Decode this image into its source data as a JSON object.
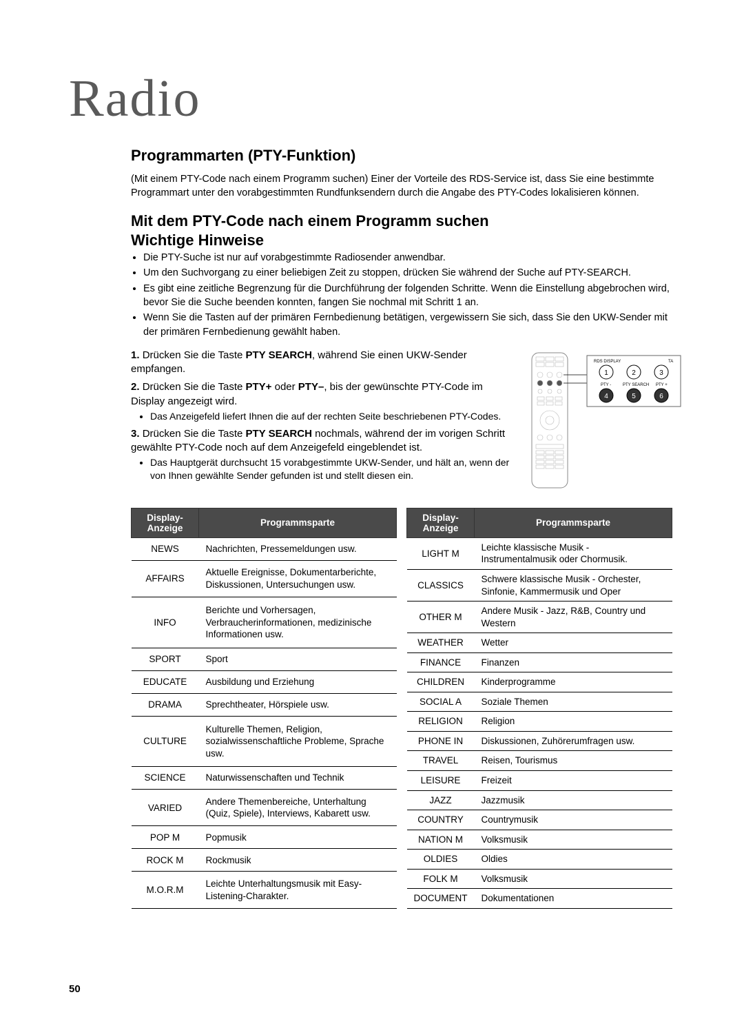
{
  "page": {
    "chapter": "Radio",
    "pageNumber": "50"
  },
  "section1": {
    "heading": "Programmarten (PTY-Funktion)",
    "intro": "(Mit einem PTY-Code nach einem Programm suchen) Einer der Vorteile des RDS-Service ist, dass Sie eine bestimmte Programmart unter den vorabgestimmten Rundfunksendern durch die Angabe des PTY-Codes lokalisieren können."
  },
  "section2": {
    "heading": "Mit dem PTY-Code nach einem Programm suchen",
    "subheading": "Wichtige Hinweise",
    "bullets": [
      "Die PTY-Suche ist nur auf vorabgestimmte Radiosender anwendbar.",
      "Um den Suchvorgang zu einer beliebigen Zeit zu stoppen, drücken Sie während der Suche auf PTY-SEARCH.",
      "Es gibt eine zeitliche Begrenzung für die Durchführung der folgenden Schritte. Wenn die Einstellung abgebrochen wird, bevor Sie die Suche beenden konnten, fangen Sie nochmal mit Schritt 1 an.",
      "Wenn Sie die Tasten auf der primären Fernbedienung betätigen, vergewissern Sie sich, dass Sie den UKW-Sender mit der primären Fernbedienung gewählt haben."
    ],
    "steps": [
      {
        "num": "1.",
        "pre": "Drücken Sie die Taste ",
        "bold": "PTY SEARCH",
        "post": ", während Sie einen UKW-Sender empfangen."
      },
      {
        "num": "2.",
        "pre": "Drücken Sie die Taste ",
        "bold": "PTY+",
        "mid": " oder ",
        "bold2": "PTY–",
        "post": ", bis der gewünschte PTY-Code im Display angezeigt wird.",
        "sub": "Das Anzeigefeld liefert Ihnen die auf der rechten Seite beschriebenen PTY-Codes."
      },
      {
        "num": "3.",
        "pre": "Drücken Sie die Taste ",
        "bold": "PTY SEARCH",
        "post": " nochmals, während der im vorigen Schritt gewählte PTY-Code noch auf dem Anzeigefeld eingeblendet ist.",
        "sub": "Das Hauptgerät durchsucht 15 vorabgestimmte UKW-Sender, und hält an, wenn der von Ihnen gewählte Sender gefunden ist und stellt diesen ein."
      }
    ]
  },
  "remote": {
    "labels": {
      "top": "RDS DISPLAY",
      "tr": "TA",
      "bl": "PTY -",
      "bm": "PTY SEARCH",
      "br": "PTY +"
    },
    "nums": [
      "1",
      "2",
      "3",
      "4",
      "5",
      "6"
    ]
  },
  "tableHeaders": {
    "col1": "Display-Anzeige",
    "col2": "Programmsparte"
  },
  "tableLeft": [
    {
      "d": "NEWS",
      "p": "Nachrichten, Pressemeldungen usw."
    },
    {
      "d": "AFFAIRS",
      "p": "Aktuelle Ereignisse, Dokumentarberichte, Diskussionen, Untersuchungen usw."
    },
    {
      "d": "INFO",
      "p": "Berichte und Vorhersagen, Verbraucherinformationen, medizinische Informationen usw."
    },
    {
      "d": "SPORT",
      "p": "Sport"
    },
    {
      "d": "EDUCATE",
      "p": "Ausbildung und Erziehung"
    },
    {
      "d": "DRAMA",
      "p": "Sprechtheater, Hörspiele usw."
    },
    {
      "d": "CULTURE",
      "p": "Kulturelle Themen, Religion, sozialwissenschaftliche Probleme, Sprache usw."
    },
    {
      "d": "SCIENCE",
      "p": "Naturwissenschaften und Technik"
    },
    {
      "d": "VARIED",
      "p": "Andere Themenbereiche, Unterhaltung (Quiz, Spiele), Interviews, Kabarett usw."
    },
    {
      "d": "POP M",
      "p": "Popmusik"
    },
    {
      "d": "ROCK M",
      "p": "Rockmusik"
    },
    {
      "d": "M.O.R.M",
      "p": "Leichte Unterhaltungsmusik mit Easy-Listening-Charakter."
    }
  ],
  "tableRight": [
    {
      "d": "LIGHT M",
      "p": "Leichte klassische Musik - Instrumentalmusik oder Chormusik."
    },
    {
      "d": "CLASSICS",
      "p": "Schwere klassische Musik - Orchester, Sinfonie, Kammermusik und Oper"
    },
    {
      "d": "OTHER M",
      "p": "Andere Musik - Jazz, R&B, Country und Western"
    },
    {
      "d": "WEATHER",
      "p": "Wetter"
    },
    {
      "d": "FINANCE",
      "p": "Finanzen"
    },
    {
      "d": "CHILDREN",
      "p": "Kinderprogramme"
    },
    {
      "d": "SOCIAL A",
      "p": "Soziale Themen"
    },
    {
      "d": "RELIGION",
      "p": "Religion"
    },
    {
      "d": "PHONE IN",
      "p": "Diskussionen, Zuhörerumfragen usw."
    },
    {
      "d": "TRAVEL",
      "p": "Reisen, Tourismus"
    },
    {
      "d": "LEISURE",
      "p": "Freizeit"
    },
    {
      "d": "JAZZ",
      "p": "Jazzmusik"
    },
    {
      "d": "COUNTRY",
      "p": "Countrymusik"
    },
    {
      "d": "NATION M",
      "p": "Volksmusik"
    },
    {
      "d": "OLDIES",
      "p": "Oldies"
    },
    {
      "d": "FOLK M",
      "p": "Volksmusik"
    },
    {
      "d": "DOCUMENT",
      "p": "Dokumentationen"
    }
  ]
}
